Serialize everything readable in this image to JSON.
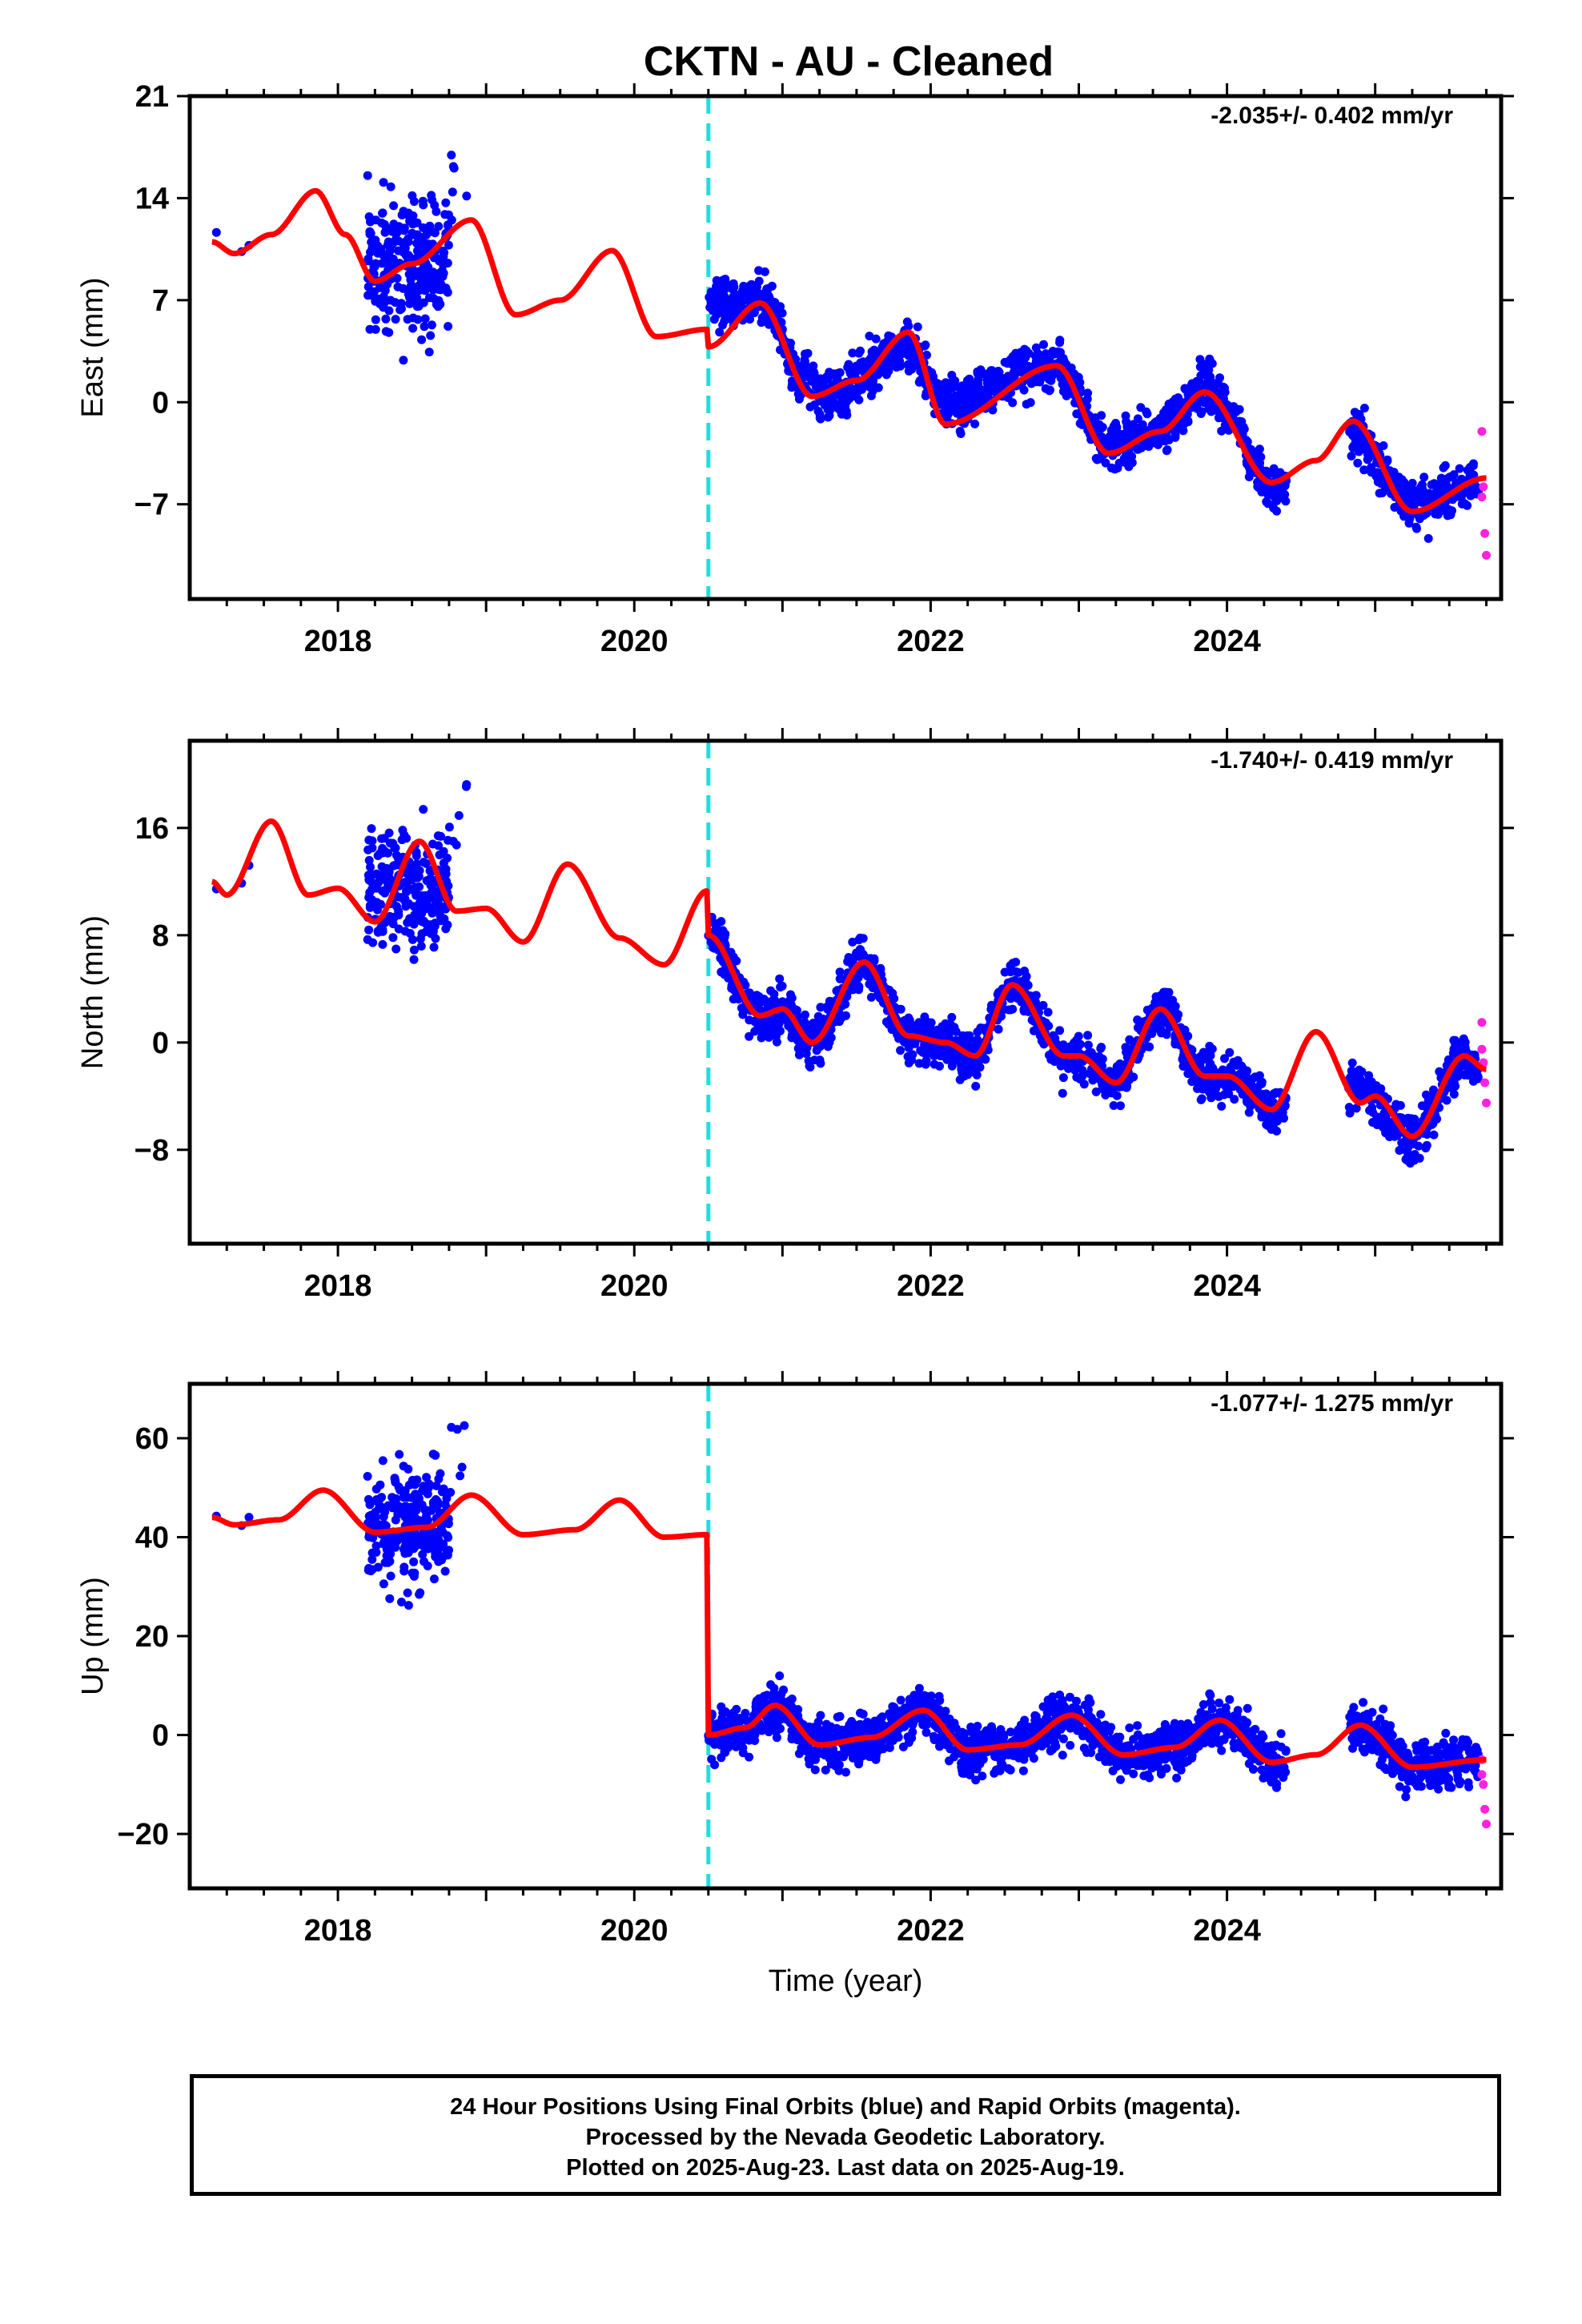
{
  "title": "CKTN  - AU - Cleaned",
  "colors": {
    "final": "#0000ff",
    "rapid": "#ff22dd",
    "model": "#ff0000",
    "event": "#22dddd",
    "axis": "#000000"
  },
  "footer": {
    "line1": "24 Hour Positions Using Final Orbits (blue) and Rapid Orbits (magenta).",
    "line2": "Processed by the Nevada Geodetic Laboratory.",
    "line3": "Plotted on 2025-Aug-23. Last data on 2025-Aug-19."
  },
  "chart_data": [
    {
      "type": "scatter",
      "component": "east",
      "ylabel": "East (mm)",
      "xlabel": "",
      "rate_label": "-2.035+/- 0.402 mm/yr",
      "xlim": [
        2017.0,
        2025.85
      ],
      "ylim": [
        -13.5,
        21.0
      ],
      "yticks": [
        21,
        14,
        7,
        0,
        -7
      ],
      "ytick_labels": [
        "21",
        "14",
        "7",
        "0",
        "−7"
      ],
      "xticks": [
        2018,
        2020,
        2022,
        2024
      ],
      "xtick_labels": [
        "2018",
        "2020",
        "2022",
        "2024"
      ],
      "event_line_x": 2020.5,
      "model_knots": [
        [
          2017.15,
          11.0
        ],
        [
          2017.3,
          10.2
        ],
        [
          2017.55,
          11.5
        ],
        [
          2017.85,
          14.5
        ],
        [
          2018.05,
          11.5
        ],
        [
          2018.25,
          8.3
        ],
        [
          2018.5,
          9.5
        ],
        [
          2018.9,
          12.5
        ],
        [
          2019.2,
          6.0
        ],
        [
          2019.5,
          7.0
        ],
        [
          2019.85,
          10.4
        ],
        [
          2020.15,
          4.5
        ],
        [
          2020.49,
          5.0
        ],
        [
          2020.5,
          3.8
        ],
        [
          2020.85,
          6.8
        ],
        [
          2021.2,
          0.4
        ],
        [
          2021.5,
          1.5
        ],
        [
          2021.85,
          4.8
        ],
        [
          2022.1,
          -1.5
        ],
        [
          2022.85,
          2.5
        ],
        [
          2023.2,
          -3.5
        ],
        [
          2023.55,
          -2.0
        ],
        [
          2023.85,
          0.7
        ],
        [
          2024.3,
          -5.5
        ],
        [
          2024.6,
          -4.0
        ],
        [
          2024.85,
          -1.3
        ],
        [
          2025.25,
          -7.5
        ],
        [
          2025.75,
          -5.2
        ]
      ],
      "final_trend": [
        [
          2020.5,
          7.0
        ],
        [
          2020.9,
          7.0
        ],
        [
          2021.1,
          2.0
        ],
        [
          2021.3,
          0.5
        ],
        [
          2021.85,
          4.0
        ],
        [
          2022.1,
          0.0
        ],
        [
          2022.85,
          2.5
        ],
        [
          2023.2,
          -3.0
        ],
        [
          2023.55,
          -2.0
        ],
        [
          2023.85,
          1.0
        ],
        [
          2024.35,
          -6.0
        ],
        [
          2024.85,
          -2.0
        ],
        [
          2025.25,
          -7.0
        ],
        [
          2025.7,
          -5.5
        ]
      ],
      "early_cluster": {
        "x0": 2018.2,
        "x1": 2018.75,
        "center": 9.5,
        "spread": 5.5
      },
      "rapid_points": [
        [
          2025.72,
          -2.0
        ],
        [
          2025.73,
          -5.8
        ],
        [
          2025.74,
          -9.0
        ],
        [
          2025.75,
          -10.5
        ],
        [
          2025.72,
          -6.5
        ]
      ]
    },
    {
      "type": "scatter",
      "component": "north",
      "ylabel": "North (mm)",
      "xlabel": "",
      "rate_label": "-1.740+/- 0.419 mm/yr",
      "xlim": [
        2017.0,
        2025.85
      ],
      "ylim": [
        -15.0,
        22.5
      ],
      "yticks": [
        16,
        8,
        0,
        -8
      ],
      "ytick_labels": [
        "16",
        "8",
        "0",
        "−8"
      ],
      "xticks": [
        2018,
        2020,
        2022,
        2024
      ],
      "xtick_labels": [
        "2018",
        "2020",
        "2022",
        "2024"
      ],
      "event_line_x": 2020.5,
      "model_knots": [
        [
          2017.15,
          12.0
        ],
        [
          2017.25,
          11.0
        ],
        [
          2017.55,
          16.5
        ],
        [
          2017.8,
          11.0
        ],
        [
          2018.0,
          11.5
        ],
        [
          2018.25,
          9.0
        ],
        [
          2018.55,
          15.0
        ],
        [
          2018.8,
          9.8
        ],
        [
          2019.0,
          10.0
        ],
        [
          2019.25,
          7.5
        ],
        [
          2019.55,
          13.3
        ],
        [
          2019.9,
          7.8
        ],
        [
          2020.2,
          5.8
        ],
        [
          2020.49,
          11.3
        ],
        [
          2020.5,
          8.0
        ],
        [
          2020.85,
          2.0
        ],
        [
          2021.0,
          2.5
        ],
        [
          2021.2,
          0.0
        ],
        [
          2021.55,
          6.0
        ],
        [
          2021.85,
          0.5
        ],
        [
          2022.1,
          0.0
        ],
        [
          2022.3,
          -1.0
        ],
        [
          2022.55,
          4.3
        ],
        [
          2022.9,
          -1.0
        ],
        [
          2023.0,
          -1.0
        ],
        [
          2023.25,
          -3.0
        ],
        [
          2023.55,
          2.5
        ],
        [
          2023.85,
          -2.5
        ],
        [
          2024.0,
          -2.5
        ],
        [
          2024.3,
          -5.0
        ],
        [
          2024.6,
          0.8
        ],
        [
          2024.9,
          -4.5
        ],
        [
          2025.0,
          -4.0
        ],
        [
          2025.25,
          -7.0
        ],
        [
          2025.6,
          -1.0
        ],
        [
          2025.75,
          -2.0
        ]
      ],
      "final_trend": [
        [
          2020.5,
          8.0
        ],
        [
          2020.85,
          2.0
        ],
        [
          2021.0,
          2.5
        ],
        [
          2021.2,
          0.0
        ],
        [
          2021.55,
          6.0
        ],
        [
          2021.85,
          0.5
        ],
        [
          2022.1,
          0.0
        ],
        [
          2022.3,
          -1.0
        ],
        [
          2022.55,
          4.3
        ],
        [
          2022.9,
          -1.0
        ],
        [
          2023.0,
          -1.0
        ],
        [
          2023.25,
          -3.0
        ],
        [
          2023.55,
          2.5
        ],
        [
          2023.85,
          -2.5
        ],
        [
          2024.0,
          -2.5
        ],
        [
          2024.35,
          -5.0
        ],
        [
          2024.85,
          -3.0
        ],
        [
          2025.25,
          -7.0
        ],
        [
          2025.6,
          -1.0
        ],
        [
          2025.7,
          -2.0
        ]
      ],
      "early_cluster": {
        "x0": 2018.2,
        "x1": 2018.75,
        "center": 11.5,
        "spread": 5.5
      },
      "rapid_points": [
        [
          2025.72,
          1.5
        ],
        [
          2025.73,
          -1.5
        ],
        [
          2025.74,
          -3.0
        ],
        [
          2025.75,
          -4.5
        ],
        [
          2025.72,
          -0.5
        ]
      ]
    },
    {
      "type": "scatter",
      "component": "up",
      "ylabel": "Up (mm)",
      "xlabel": "Time (year)",
      "rate_label": "-1.077+/- 1.275 mm/yr",
      "xlim": [
        2017.0,
        2025.85
      ],
      "ylim": [
        -31.0,
        71.0
      ],
      "yticks": [
        60,
        40,
        20,
        0,
        -20
      ],
      "ytick_labels": [
        "60",
        "40",
        "20",
        "0",
        "−20"
      ],
      "xticks": [
        2018,
        2020,
        2022,
        2024
      ],
      "xtick_labels": [
        "2018",
        "2020",
        "2022",
        "2024"
      ],
      "event_line_x": 2020.5,
      "model_knots": [
        [
          2017.15,
          44.0
        ],
        [
          2017.3,
          42.5
        ],
        [
          2017.6,
          43.5
        ],
        [
          2017.9,
          49.5
        ],
        [
          2018.25,
          41.0
        ],
        [
          2018.6,
          42.0
        ],
        [
          2018.9,
          48.5
        ],
        [
          2019.25,
          40.5
        ],
        [
          2019.6,
          41.5
        ],
        [
          2019.9,
          47.5
        ],
        [
          2020.2,
          40.0
        ],
        [
          2020.49,
          40.5
        ],
        [
          2020.5,
          0.0
        ],
        [
          2020.75,
          1.5
        ],
        [
          2020.95,
          6.0
        ],
        [
          2021.25,
          -2.0
        ],
        [
          2021.6,
          -0.5
        ],
        [
          2021.95,
          5.0
        ],
        [
          2022.25,
          -3.0
        ],
        [
          2022.6,
          -2.0
        ],
        [
          2022.95,
          4.0
        ],
        [
          2023.3,
          -4.0
        ],
        [
          2023.65,
          -2.5
        ],
        [
          2023.95,
          3.0
        ],
        [
          2024.3,
          -5.5
        ],
        [
          2024.6,
          -4.0
        ],
        [
          2024.9,
          2.0
        ],
        [
          2025.25,
          -6.5
        ],
        [
          2025.75,
          -5.0
        ]
      ],
      "final_trend": [
        [
          2020.5,
          0.0
        ],
        [
          2020.75,
          1.5
        ],
        [
          2020.95,
          6.0
        ],
        [
          2021.25,
          -2.0
        ],
        [
          2021.6,
          -0.5
        ],
        [
          2021.95,
          5.0
        ],
        [
          2022.25,
          -3.0
        ],
        [
          2022.6,
          -2.0
        ],
        [
          2022.95,
          4.0
        ],
        [
          2023.3,
          -4.0
        ],
        [
          2023.65,
          -2.5
        ],
        [
          2023.95,
          3.0
        ],
        [
          2024.35,
          -5.5
        ],
        [
          2024.9,
          2.0
        ],
        [
          2025.25,
          -6.5
        ],
        [
          2025.7,
          -5.0
        ]
      ],
      "early_cluster": {
        "x0": 2018.2,
        "x1": 2018.75,
        "center": 42.0,
        "spread": 14.0
      },
      "rapid_points": [
        [
          2025.72,
          -5.0
        ],
        [
          2025.73,
          -10.0
        ],
        [
          2025.74,
          -15.0
        ],
        [
          2025.75,
          -18.0
        ],
        [
          2025.72,
          -8.0
        ]
      ]
    }
  ]
}
